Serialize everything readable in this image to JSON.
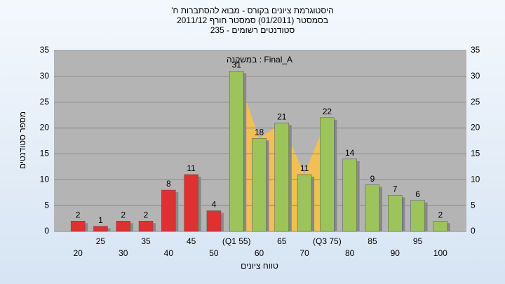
{
  "chart_data": {
    "type": "bar",
    "title": "היסטוגרמת ציונים בקורס - מבוא להסתברות ח'",
    "subtitle": "בסמסטר (01/2011) סמסטר חורף 2011/12",
    "subtitle2": "סטודנטים רשומים - 235",
    "annotation": "במשקנה : Final_A",
    "x_label": "טווח ציונים",
    "y_label": "מספר סטודנטים",
    "categories": [
      "20",
      "25",
      "30",
      "35",
      "40",
      "45",
      "50",
      "(Q1 55)",
      "60",
      "65",
      "70",
      "(Q3 75)",
      "80",
      "85",
      "90",
      "95",
      "100"
    ],
    "values": [
      2,
      1,
      2,
      2,
      8,
      11,
      4,
      31,
      18,
      21,
      11,
      22,
      14,
      9,
      7,
      6,
      2
    ],
    "colors": [
      "#e03030",
      "#e03030",
      "#e03030",
      "#e03030",
      "#e03030",
      "#e03030",
      "#e03030",
      "#9cc45a",
      "#9cc45a",
      "#9cc45a",
      "#9cc45a",
      "#9cc45a",
      "#9cc45a",
      "#9cc45a",
      "#9cc45a",
      "#9cc45a",
      "#9cc45a"
    ],
    "ylim": [
      0,
      35
    ],
    "yticks": [
      0,
      5,
      10,
      15,
      20,
      25,
      30,
      35
    ],
    "grid": true
  }
}
